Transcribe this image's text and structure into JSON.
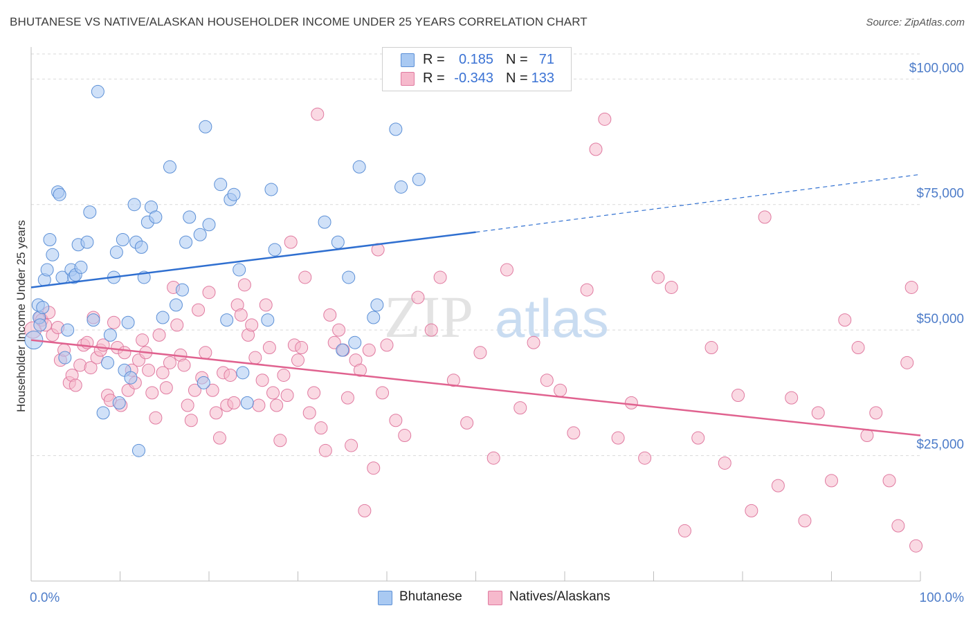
{
  "header": {
    "title": "BHUTANESE VS NATIVE/ALASKAN HOUSEHOLDER INCOME UNDER 25 YEARS CORRELATION CHART",
    "source": "Source: ZipAtlas.com"
  },
  "watermark": {
    "zip": "ZIP",
    "atlas": "atlas"
  },
  "legend": {
    "rows": [
      {
        "r_label": "R =",
        "r_value": "0.185",
        "n_label": "N =",
        "n_value": "71",
        "color": "#a9c9f2"
      },
      {
        "r_label": "R =",
        "r_value": "-0.343",
        "n_label": "N =",
        "n_value": "133",
        "color": "#f6b9cc"
      }
    ]
  },
  "bottom_legend": [
    {
      "label": "Bhutanese",
      "color": "#a9c9f2"
    },
    {
      "label": "Natives/Alaskans",
      "color": "#f6b9cc"
    }
  ],
  "colors": {
    "blue_fill": "#a9c9f2",
    "blue_stroke": "#5b8fd6",
    "blue_line": "#2f6fd0",
    "pink_fill": "#f6b9cc",
    "pink_stroke": "#e07aa0",
    "pink_line": "#e0628f",
    "grid": "#d9d9d9",
    "tick_text": "#4d7cc9"
  },
  "chart_data": {
    "type": "scatter",
    "title": "BHUTANESE VS NATIVE/ALASKAN HOUSEHOLDER INCOME UNDER 25 YEARS CORRELATION CHART",
    "xlabel": "",
    "ylabel": "Householder Income Under 25 years",
    "xlim": [
      0,
      100
    ],
    "ylim": [
      0,
      105000
    ],
    "x_tick_labels": [
      "0.0%",
      "100.0%"
    ],
    "y_ticks": [
      25000,
      50000,
      75000,
      100000
    ],
    "y_tick_labels": [
      "$25,000",
      "$50,000",
      "$75,000",
      "$100,000"
    ],
    "grid": true,
    "legend_position": "top-center",
    "series": [
      {
        "name": "Bhutanese",
        "r": 0.185,
        "n": 71,
        "trend": {
          "x0": 0,
          "y0": 58500,
          "x1": 50,
          "y1": 69500,
          "dash_to_x": 100,
          "dash_to_y": 81000
        },
        "points": [
          [
            0.3,
            48000,
            13
          ],
          [
            0.8,
            55000,
            9
          ],
          [
            0.9,
            52500,
            9
          ],
          [
            1.0,
            51000,
            9
          ],
          [
            1.3,
            54500,
            9
          ],
          [
            1.5,
            60000,
            9
          ],
          [
            1.8,
            62000,
            9
          ],
          [
            2.1,
            68000,
            9
          ],
          [
            2.4,
            65000,
            9
          ],
          [
            3.0,
            77500,
            9
          ],
          [
            3.2,
            77000,
            9
          ],
          [
            3.5,
            60500,
            9
          ],
          [
            3.8,
            44500,
            9
          ],
          [
            4.1,
            50000,
            9
          ],
          [
            4.5,
            62000,
            9
          ],
          [
            4.8,
            60500,
            9
          ],
          [
            5.0,
            61000,
            9
          ],
          [
            5.3,
            67000,
            9
          ],
          [
            5.6,
            62500,
            9
          ],
          [
            6.3,
            67500,
            9
          ],
          [
            6.6,
            73500,
            9
          ],
          [
            7.0,
            52000,
            9
          ],
          [
            7.5,
            97500,
            9
          ],
          [
            8.1,
            33500,
            9
          ],
          [
            8.6,
            43500,
            9
          ],
          [
            8.9,
            49000,
            9
          ],
          [
            9.3,
            60500,
            9
          ],
          [
            9.6,
            65500,
            9
          ],
          [
            9.9,
            35500,
            9
          ],
          [
            10.3,
            68000,
            9
          ],
          [
            10.5,
            42000,
            9
          ],
          [
            10.9,
            51500,
            9
          ],
          [
            11.2,
            40500,
            9
          ],
          [
            11.6,
            75000,
            9
          ],
          [
            11.8,
            67500,
            9
          ],
          [
            12.1,
            26000,
            9
          ],
          [
            12.4,
            66500,
            9
          ],
          [
            12.7,
            60500,
            9
          ],
          [
            13.1,
            71500,
            9
          ],
          [
            13.5,
            74500,
            9
          ],
          [
            14.0,
            72500,
            9
          ],
          [
            14.8,
            52500,
            9
          ],
          [
            15.6,
            82500,
            9
          ],
          [
            16.3,
            55000,
            9
          ],
          [
            17.0,
            58000,
            9
          ],
          [
            17.4,
            67500,
            9
          ],
          [
            17.8,
            72500,
            9
          ],
          [
            19.0,
            69000,
            9
          ],
          [
            19.4,
            39500,
            9
          ],
          [
            19.6,
            90500,
            9
          ],
          [
            20.0,
            71000,
            9
          ],
          [
            21.3,
            79000,
            9
          ],
          [
            22.0,
            52000,
            9
          ],
          [
            22.4,
            76000,
            9
          ],
          [
            22.8,
            77000,
            9
          ],
          [
            23.4,
            62000,
            9
          ],
          [
            23.8,
            41500,
            9
          ],
          [
            24.3,
            35500,
            9
          ],
          [
            26.6,
            52000,
            9
          ],
          [
            27.0,
            78000,
            9
          ],
          [
            27.4,
            66000,
            9
          ],
          [
            33.0,
            71500,
            9
          ],
          [
            34.5,
            67500,
            9
          ],
          [
            35.0,
            46000,
            9
          ],
          [
            35.7,
            60500,
            9
          ],
          [
            36.4,
            47500,
            9
          ],
          [
            36.9,
            82500,
            9
          ],
          [
            38.5,
            52500,
            9
          ],
          [
            38.9,
            55000,
            9
          ],
          [
            41.0,
            90000,
            9
          ],
          [
            41.6,
            78500,
            9
          ],
          [
            43.6,
            80000,
            9
          ]
        ]
      },
      {
        "name": "Natives/Alaskans",
        "r": -0.343,
        "n": 133,
        "trend": {
          "x0": 0,
          "y0": 48000,
          "x1": 100,
          "y1": 29000
        },
        "points": [
          [
            0.2,
            50000,
            12
          ],
          [
            1.0,
            52500,
            9
          ],
          [
            1.2,
            52000,
            9
          ],
          [
            1.6,
            51000,
            9
          ],
          [
            2.0,
            53500,
            9
          ],
          [
            2.4,
            49000,
            9
          ],
          [
            3.0,
            50500,
            9
          ],
          [
            3.3,
            44000,
            9
          ],
          [
            3.7,
            46000,
            9
          ],
          [
            4.3,
            39500,
            9
          ],
          [
            4.6,
            41000,
            9
          ],
          [
            5.0,
            39000,
            9
          ],
          [
            5.5,
            43000,
            9
          ],
          [
            5.9,
            47000,
            9
          ],
          [
            6.3,
            47500,
            9
          ],
          [
            6.7,
            42500,
            9
          ],
          [
            7.0,
            52500,
            9
          ],
          [
            7.4,
            44500,
            9
          ],
          [
            7.8,
            46000,
            9
          ],
          [
            8.1,
            47000,
            9
          ],
          [
            8.6,
            37000,
            9
          ],
          [
            8.9,
            36000,
            9
          ],
          [
            9.3,
            51500,
            9
          ],
          [
            9.7,
            46500,
            9
          ],
          [
            10.1,
            35000,
            9
          ],
          [
            10.5,
            45500,
            9
          ],
          [
            10.9,
            38000,
            9
          ],
          [
            11.3,
            42000,
            9
          ],
          [
            11.7,
            39500,
            9
          ],
          [
            12.1,
            44000,
            9
          ],
          [
            12.5,
            48000,
            9
          ],
          [
            12.9,
            45500,
            9
          ],
          [
            13.2,
            42000,
            9
          ],
          [
            13.6,
            37500,
            9
          ],
          [
            14.0,
            32500,
            9
          ],
          [
            14.4,
            49000,
            9
          ],
          [
            14.8,
            41500,
            9
          ],
          [
            15.2,
            38500,
            9
          ],
          [
            15.6,
            43500,
            9
          ],
          [
            16.0,
            58500,
            9
          ],
          [
            16.4,
            51000,
            9
          ],
          [
            16.8,
            45000,
            9
          ],
          [
            17.2,
            43000,
            9
          ],
          [
            17.6,
            35000,
            9
          ],
          [
            18.0,
            32000,
            9
          ],
          [
            18.4,
            38000,
            9
          ],
          [
            18.8,
            54000,
            9
          ],
          [
            19.2,
            40500,
            9
          ],
          [
            19.6,
            45500,
            9
          ],
          [
            20.0,
            57500,
            9
          ],
          [
            20.4,
            38000,
            9
          ],
          [
            20.8,
            33500,
            9
          ],
          [
            21.2,
            28500,
            9
          ],
          [
            21.6,
            41500,
            9
          ],
          [
            22.0,
            35000,
            9
          ],
          [
            22.4,
            41000,
            9
          ],
          [
            22.8,
            35500,
            9
          ],
          [
            23.2,
            55000,
            9
          ],
          [
            23.6,
            53000,
            9
          ],
          [
            24.0,
            59000,
            9
          ],
          [
            24.4,
            49000,
            9
          ],
          [
            24.8,
            51000,
            9
          ],
          [
            25.2,
            44500,
            9
          ],
          [
            25.6,
            35000,
            9
          ],
          [
            26.0,
            40000,
            9
          ],
          [
            26.4,
            55000,
            9
          ],
          [
            26.8,
            46500,
            9
          ],
          [
            27.2,
            37500,
            9
          ],
          [
            27.6,
            35000,
            9
          ],
          [
            28.0,
            28000,
            9
          ],
          [
            28.4,
            41000,
            9
          ],
          [
            28.8,
            37000,
            9
          ],
          [
            29.2,
            67500,
            9
          ],
          [
            29.6,
            47000,
            9
          ],
          [
            30.0,
            44000,
            9
          ],
          [
            30.4,
            46500,
            9
          ],
          [
            30.8,
            60500,
            9
          ],
          [
            31.3,
            33500,
            9
          ],
          [
            31.8,
            37500,
            9
          ],
          [
            32.2,
            93000,
            9
          ],
          [
            32.6,
            30500,
            9
          ],
          [
            33.1,
            26000,
            9
          ],
          [
            33.6,
            53000,
            9
          ],
          [
            34.1,
            47500,
            9
          ],
          [
            34.6,
            50000,
            9
          ],
          [
            35.1,
            46000,
            9
          ],
          [
            35.6,
            36500,
            9
          ],
          [
            36.0,
            27000,
            9
          ],
          [
            36.5,
            44000,
            9
          ],
          [
            37.0,
            42000,
            9
          ],
          [
            37.5,
            14000,
            9
          ],
          [
            38.0,
            46000,
            9
          ],
          [
            38.5,
            22500,
            9
          ],
          [
            39.0,
            66000,
            9
          ],
          [
            39.5,
            37500,
            9
          ],
          [
            40.0,
            47000,
            9
          ],
          [
            41.0,
            32000,
            9
          ],
          [
            42.0,
            29000,
            9
          ],
          [
            43.5,
            56500,
            9
          ],
          [
            45.0,
            50000,
            9
          ],
          [
            46.0,
            60500,
            9
          ],
          [
            47.5,
            40000,
            9
          ],
          [
            49.0,
            31500,
            9
          ],
          [
            50.5,
            45500,
            9
          ],
          [
            52.0,
            24500,
            9
          ],
          [
            53.5,
            62000,
            9
          ],
          [
            55.0,
            34500,
            9
          ],
          [
            56.5,
            47500,
            9
          ],
          [
            58.0,
            40000,
            9
          ],
          [
            59.5,
            38000,
            9
          ],
          [
            61.0,
            29500,
            9
          ],
          [
            62.5,
            58000,
            9
          ],
          [
            63.5,
            86000,
            9
          ],
          [
            64.5,
            92000,
            9
          ],
          [
            66.0,
            28500,
            9
          ],
          [
            67.5,
            35500,
            9
          ],
          [
            69.0,
            24500,
            9
          ],
          [
            70.5,
            60500,
            9
          ],
          [
            72.0,
            58500,
            9
          ],
          [
            73.5,
            10000,
            9
          ],
          [
            75.0,
            28500,
            9
          ],
          [
            76.5,
            46500,
            9
          ],
          [
            78.0,
            23500,
            9
          ],
          [
            79.5,
            37000,
            9
          ],
          [
            81.0,
            14000,
            9
          ],
          [
            82.5,
            72500,
            9
          ],
          [
            84.0,
            19000,
            9
          ],
          [
            85.5,
            36500,
            9
          ],
          [
            87.0,
            12000,
            9
          ],
          [
            88.5,
            33500,
            9
          ],
          [
            90.0,
            20000,
            9
          ],
          [
            91.5,
            52000,
            9
          ],
          [
            93.0,
            46500,
            9
          ],
          [
            94.0,
            29000,
            9
          ],
          [
            95.0,
            33500,
            9
          ],
          [
            96.5,
            20000,
            9
          ],
          [
            97.5,
            11000,
            9
          ],
          [
            98.5,
            43500,
            9
          ],
          [
            99.0,
            58500,
            9
          ],
          [
            99.5,
            7000,
            9
          ]
        ]
      }
    ]
  }
}
